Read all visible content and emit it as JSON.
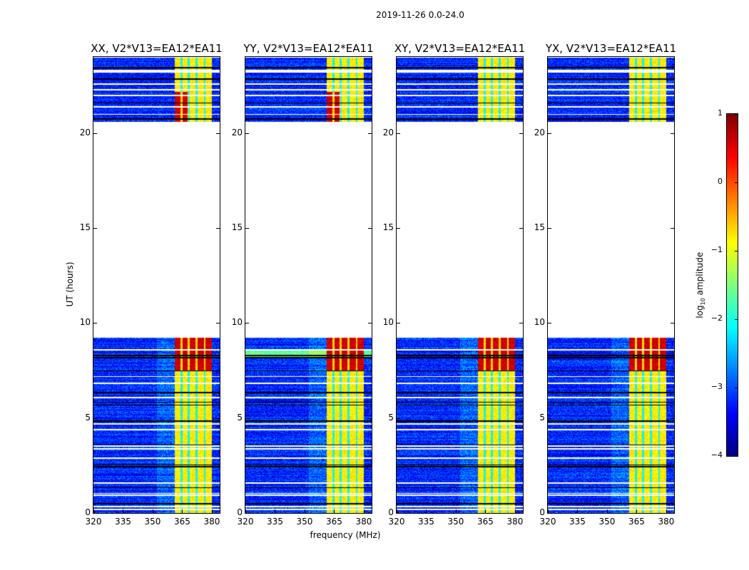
{
  "chart_data": {
    "type": "heatmap",
    "title": "2019-11-26 0.0-24.0",
    "xlabel": "frequency (MHz)",
    "ylabel": "UT (hours)",
    "xlim": [
      320,
      384
    ],
    "ylim": [
      0,
      24
    ],
    "xticks": [
      320,
      335,
      350,
      365,
      380
    ],
    "xtick_labels": [
      "320",
      "335",
      "350",
      "365",
      "380"
    ],
    "yticks": [
      0,
      5,
      10,
      15,
      20
    ],
    "ytick_labels": [
      "0",
      "5",
      "10",
      "15",
      "20"
    ],
    "panels": [
      {
        "title": "XX, V2*V13=EA12*EA11"
      },
      {
        "title": "YY, V2*V13=EA12*EA11"
      },
      {
        "title": "XY, V2*V13=EA12*EA11"
      },
      {
        "title": "YX, V2*V13=EA12*EA11"
      }
    ],
    "data_ut_ranges": [
      [
        0,
        9.25
      ],
      [
        20.6,
        23.2
      ],
      [
        23.35,
        24
      ]
    ],
    "rfi_band_mhz": [
      361,
      380
    ],
    "strong_rfi_ut_range": [
      7.5,
      9.25
    ],
    "background_log10_amplitude": -3.2,
    "rfi_band_log10_amplitude": -0.8,
    "strong_rfi_log10_amplitude": 0.6,
    "colorbar": {
      "label": "log10 amplitude",
      "label_main": "log",
      "label_sub": "10",
      "label_rest": " amplitude",
      "range": [
        -4,
        1
      ],
      "ticks": [
        1,
        0,
        -1,
        -2,
        -3,
        -4
      ],
      "tick_labels": [
        "1",
        "0",
        "−1",
        "−2",
        "−3",
        "−4"
      ],
      "colormap": "jet"
    }
  }
}
